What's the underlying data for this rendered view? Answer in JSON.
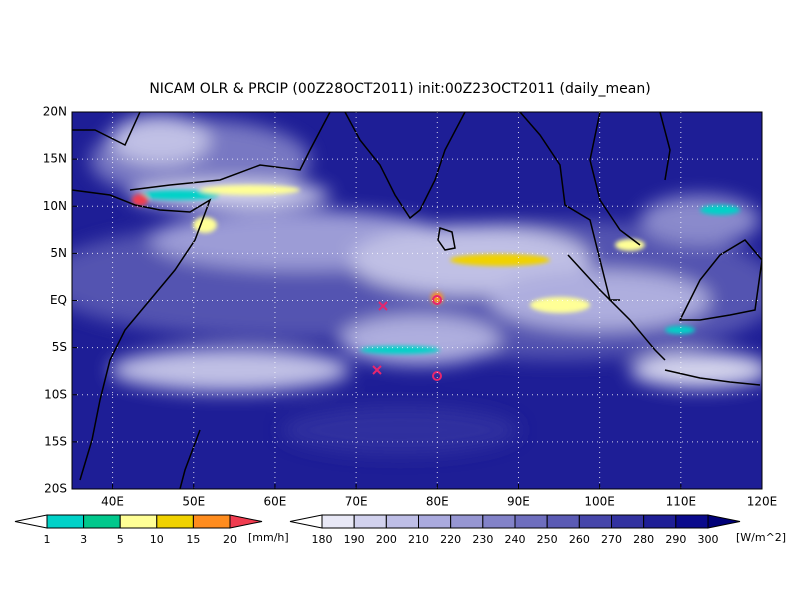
{
  "map": {
    "title": "NICAM OLR & PRCIP (00Z28OCT2011) init:00Z23OCT2011 (daily_mean)",
    "lonlim": [
      35,
      120
    ],
    "latlim": [
      -20,
      20
    ],
    "lon_ticks": [
      {
        "value": 40,
        "label": "40E"
      },
      {
        "value": 50,
        "label": "50E"
      },
      {
        "value": 60,
        "label": "60E"
      },
      {
        "value": 70,
        "label": "70E"
      },
      {
        "value": 80,
        "label": "80E"
      },
      {
        "value": 90,
        "label": "90E"
      },
      {
        "value": 100,
        "label": "100E"
      },
      {
        "value": 110,
        "label": "110E"
      },
      {
        "value": 120,
        "label": "120E"
      }
    ],
    "lat_ticks": [
      {
        "value": 20,
        "label": "20N"
      },
      {
        "value": 15,
        "label": "15N"
      },
      {
        "value": 10,
        "label": "10N"
      },
      {
        "value": 5,
        "label": "5N"
      },
      {
        "value": 0,
        "label": "EQ"
      },
      {
        "value": -5,
        "label": "5S"
      },
      {
        "value": -10,
        "label": "10S"
      },
      {
        "value": -15,
        "label": "15S"
      },
      {
        "value": -20,
        "label": "20S"
      }
    ],
    "grid": true,
    "colorbars": [
      {
        "unit": "[mm/h]",
        "levels": [
          1,
          3,
          5,
          10,
          15,
          20
        ],
        "colors": [
          "#ffffff",
          "#00d2c8",
          "#00c88c",
          "#ffff96",
          "#f0d200",
          "#ff8c1e",
          "#f03c50"
        ]
      },
      {
        "unit": "[W/m^2]",
        "levels": [
          180,
          190,
          200,
          210,
          220,
          230,
          240,
          250,
          260,
          270,
          280,
          290,
          300
        ],
        "colors": [
          "#ffffff",
          "#e8e8f6",
          "#d2d2ee",
          "#bebee6",
          "#aaaade",
          "#9696d2",
          "#8282c8",
          "#6e6ebe",
          "#5a5ab4",
          "#4646aa",
          "#3232a0",
          "#1e1e96",
          "#0a0a8c",
          "#000078"
        ]
      }
    ]
  }
}
